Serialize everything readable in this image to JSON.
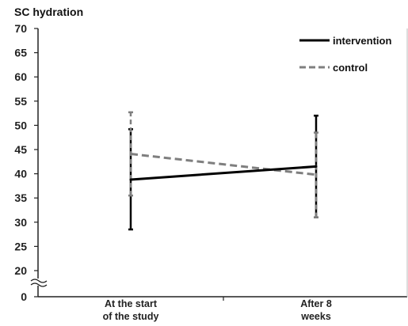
{
  "chart_data": {
    "type": "line",
    "title": "SC hydration",
    "xlabel": "",
    "ylabel": "",
    "categories": [
      [
        "At the start",
        "of the study"
      ],
      [
        "After 8",
        "weeks"
      ]
    ],
    "y_ticks": [
      "0",
      "20",
      "25",
      "30",
      "35",
      "40",
      "45",
      "50",
      "55",
      "60",
      "65",
      "70"
    ],
    "ylim": [
      20,
      70
    ],
    "axis_break": "between 0 and 20",
    "grid": false,
    "legend_position": "top-right",
    "series": [
      {
        "name": "intervention",
        "style": "solid",
        "color": "#000000",
        "values": [
          38.8,
          41.5
        ],
        "error_low": [
          28.5,
          31.0
        ],
        "error_high": [
          49.2,
          52.0
        ]
      },
      {
        "name": "control",
        "style": "dashed",
        "color": "#7f7f7f",
        "values": [
          44.1,
          39.8
        ],
        "error_low": [
          35.5,
          31.0
        ],
        "error_high": [
          52.7,
          48.5
        ]
      }
    ]
  }
}
